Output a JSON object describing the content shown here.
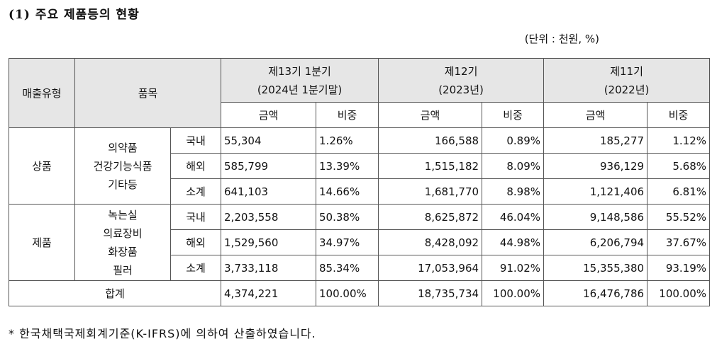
{
  "title": "(1) 주요 제품등의 현황",
  "unit_note": "(단위 : 천원, %)",
  "header": {
    "sales_type": "매출유형",
    "item": "품목",
    "periods": [
      {
        "line1": "제13기 1분기",
        "line2": "(2024년 1분기말)"
      },
      {
        "line1": "제12기",
        "line2": "(2023년)"
      },
      {
        "line1": "제11기",
        "line2": "(2022년)"
      }
    ],
    "amount": "금액",
    "ratio": "비중"
  },
  "groups": [
    {
      "type": "상품",
      "items": [
        "의약품",
        "건강기능식품",
        "기타등"
      ],
      "rows": [
        {
          "region": "국내",
          "values": [
            "55,304",
            "1.26%",
            "166,588",
            "0.89%",
            "185,277",
            "1.12%"
          ]
        },
        {
          "region": "해외",
          "values": [
            "585,799",
            "13.39%",
            "1,515,182",
            "8.09%",
            "936,129",
            "5.68%"
          ]
        },
        {
          "region": "소계",
          "values": [
            "641,103",
            "14.66%",
            "1,681,770",
            "8.98%",
            "1,121,406",
            "6.81%"
          ]
        }
      ]
    },
    {
      "type": "제품",
      "items": [
        "녹는실",
        "의료장비",
        "화장품",
        "필러"
      ],
      "rows": [
        {
          "region": "국내",
          "values": [
            "2,203,558",
            "50.38%",
            "8,625,872",
            "46.04%",
            "9,148,586",
            "55.52%"
          ]
        },
        {
          "region": "해외",
          "values": [
            "1,529,560",
            "34.97%",
            "8,428,092",
            "44.98%",
            "6,206,794",
            "37.67%"
          ]
        },
        {
          "region": "소계",
          "values": [
            "3,733,118",
            "85.34%",
            "17,053,964",
            "91.02%",
            "15,355,380",
            "93.19%"
          ]
        }
      ]
    }
  ],
  "total": {
    "label": "합계",
    "values": [
      "4,374,221",
      "100.00%",
      "18,735,734",
      "100.00%",
      "16,476,786",
      "100.00%"
    ]
  },
  "footnote": "* 한국채택국제회계기준(K-IFRS)에 의하여 산출하였습니다."
}
